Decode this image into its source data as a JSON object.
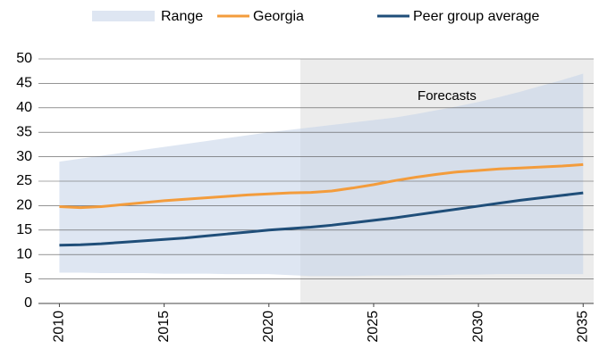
{
  "chart_data": {
    "type": "line",
    "x": [
      2010,
      2011,
      2012,
      2013,
      2014,
      2015,
      2016,
      2017,
      2018,
      2019,
      2020,
      2021,
      2022,
      2023,
      2024,
      2025,
      2026,
      2027,
      2028,
      2029,
      2030,
      2031,
      2032,
      2033,
      2034,
      2035
    ],
    "range": {
      "name": "Range",
      "color": "#c8d6ea",
      "low": [
        6.3,
        6.3,
        6.2,
        6.2,
        6.2,
        6.1,
        6.1,
        6.1,
        6.0,
        6.0,
        6.0,
        5.8,
        5.6,
        5.6,
        5.6,
        5.7,
        5.7,
        5.8,
        5.8,
        5.9,
        5.9,
        6.0,
        6.0,
        6.0,
        6.0,
        6.0
      ],
      "high": [
        29,
        29.6,
        30.2,
        30.8,
        31.4,
        32,
        32.6,
        33.2,
        33.8,
        34.4,
        35,
        35.5,
        36,
        36.5,
        37,
        37.5,
        38,
        38.7,
        39.5,
        40.3,
        41.2,
        42.2,
        43.3,
        44.5,
        45.7,
        47
      ]
    },
    "series": [
      {
        "name": "Georgia",
        "color": "#f39c3c",
        "values": [
          19.8,
          19.6,
          19.8,
          20.2,
          20.6,
          21,
          21.3,
          21.6,
          21.9,
          22.2,
          22.4,
          22.6,
          22.7,
          23,
          23.6,
          24.3,
          25.1,
          25.8,
          26.4,
          26.9,
          27.2,
          27.5,
          27.7,
          27.9,
          28.1,
          28.4
        ]
      },
      {
        "name": "Peer group average",
        "color": "#1f4e79",
        "values": [
          11.9,
          12.0,
          12.2,
          12.5,
          12.8,
          13.1,
          13.4,
          13.8,
          14.2,
          14.6,
          15.0,
          15.3,
          15.6,
          16.0,
          16.5,
          17.0,
          17.5,
          18.1,
          18.7,
          19.3,
          19.9,
          20.5,
          21.1,
          21.6,
          22.1,
          22.6
        ]
      }
    ],
    "forecast": {
      "label": "Forecasts",
      "start": 2021.5,
      "color": "#ececec"
    },
    "xlim": [
      2009,
      2035.5
    ],
    "xticks": [
      2010,
      2015,
      2020,
      2025,
      2030,
      2035
    ],
    "ylim": [
      0,
      50
    ],
    "yticks": [
      0,
      5,
      10,
      15,
      20,
      25,
      30,
      35,
      40,
      45,
      50
    ],
    "grid": true
  }
}
